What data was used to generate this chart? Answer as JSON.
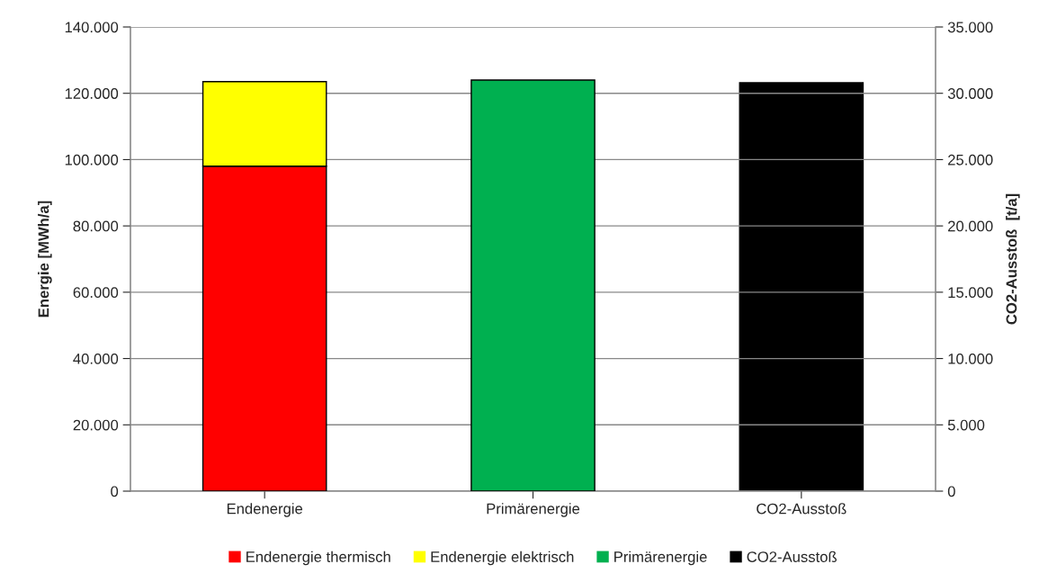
{
  "chart_data": {
    "type": "bar",
    "stacked": true,
    "categories": [
      "Endenergie",
      "Primärenergie",
      "CO2-Ausstoß"
    ],
    "ylabel": "Energie [MWh/a]",
    "y2label": "CO2-Ausstoß  [t/a]",
    "series": [
      {
        "name": "Endenergie thermisch",
        "color": "#ff0000",
        "values": [
          98000,
          null,
          null
        ]
      },
      {
        "name": "Endenergie elektrisch",
        "color": "#ffff00",
        "values": [
          25500,
          null,
          null
        ]
      },
      {
        "name": "Primärenergie",
        "color": "#00b050",
        "values": [
          null,
          124000,
          null
        ]
      },
      {
        "name": "CO2-Ausstoß",
        "color": "#000000",
        "values": [
          null,
          null,
          30800
        ],
        "axis": "y2"
      }
    ],
    "ylim": [
      0,
      140000
    ],
    "yticks": [
      0,
      {
        "value": 20000,
        "label": "20.000"
      },
      {
        "value": 40000,
        "label": "40.000"
      },
      {
        "value": 60000,
        "label": "60.000"
      },
      {
        "value": 80000,
        "label": "80.000"
      },
      {
        "value": 100000,
        "label": "100.000"
      },
      {
        "value": 120000,
        "label": "120.000"
      },
      {
        "value": 140000,
        "label": "140.000"
      }
    ],
    "y2lim": [
      0,
      35000
    ],
    "y2ticks": [
      0,
      {
        "value": 5000,
        "label": "5.000"
      },
      {
        "value": 10000,
        "label": "10.000"
      },
      {
        "value": 15000,
        "label": "15.000"
      },
      {
        "value": 20000,
        "label": "20.000"
      },
      {
        "value": 25000,
        "label": "25.000"
      },
      {
        "value": 30000,
        "label": "30.000"
      },
      {
        "value": 35000,
        "label": "35.000"
      }
    ],
    "grid": "y",
    "legend": "bottom"
  }
}
